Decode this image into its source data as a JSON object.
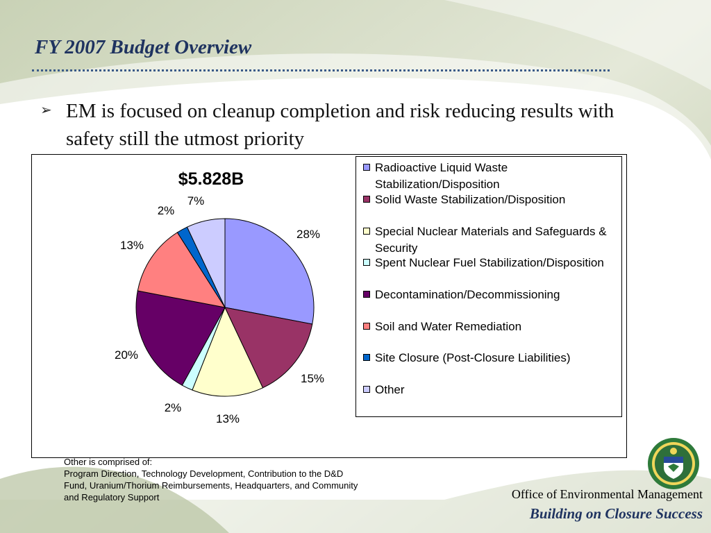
{
  "slide": {
    "title": "FY 2007 Budget Overview",
    "bullet": "EM is focused on cleanup completion and risk reducing results with safety still the utmost priority",
    "footnote_lines": [
      "Other is comprised of:",
      "Program Direction, Technology Development, Contribution to the D&D",
      "Fund, Uranium/Thorium Reimbursements, Headquarters, and Community",
      "and Regulatory Support"
    ],
    "office": "Office of Environmental Management",
    "tagline": "Building on Closure Success",
    "seal_text": "DEPARTMENT OF ENERGY · UNITED STATES OF AMERICA"
  },
  "chart_data": {
    "type": "pie",
    "title": "$5.828B",
    "legend_position": "right",
    "slices": [
      {
        "name": "Radioactive Liquid Waste Stabilization/Disposition",
        "value": 28,
        "label": "28%",
        "color": "#9999ff"
      },
      {
        "name": "Solid Waste Stabilization/Disposition",
        "value": 15,
        "label": "15%",
        "color": "#993366"
      },
      {
        "name": "Special Nuclear Materials and Safeguards & Security",
        "value": 13,
        "label": "13%",
        "color": "#ffffcc"
      },
      {
        "name": "Spent Nuclear Fuel Stabilization/Disposition",
        "value": 2,
        "label": "2%",
        "color": "#ccffff"
      },
      {
        "name": "Decontamination/Decommissioning",
        "value": 20,
        "label": "20%",
        "color": "#660066"
      },
      {
        "name": "Soil and Water Remediation",
        "value": 13,
        "label": "13%",
        "color": "#ff8080"
      },
      {
        "name": "Site Closure (Post-Closure Liabilities)",
        "value": 2,
        "label": "2%",
        "color": "#0066cc"
      },
      {
        "name": "Other",
        "value": 7,
        "label": "7%",
        "color": "#ccccff"
      }
    ]
  }
}
